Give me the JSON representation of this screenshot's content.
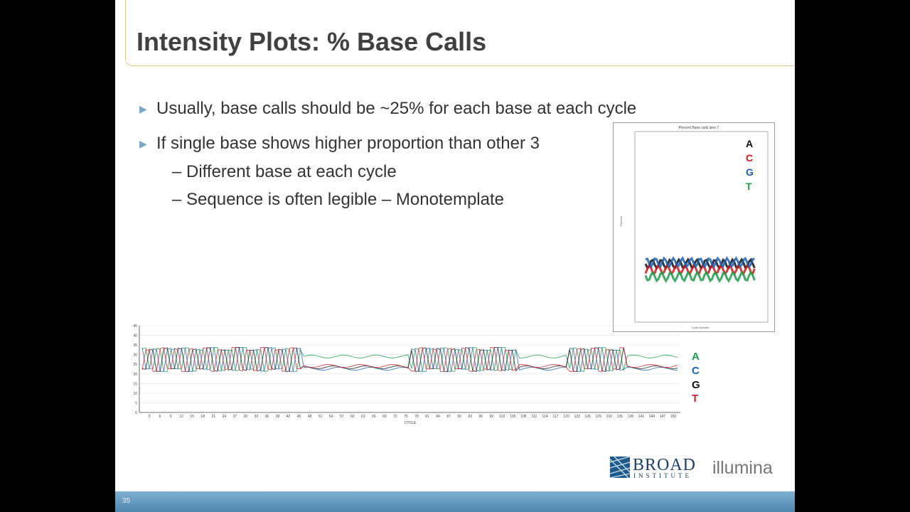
{
  "slide": {
    "title": "Intensity Plots: % Base Calls",
    "bullets": [
      "Usually, base calls should be ~25% for each base at each cycle",
      "If single base shows higher proportion than other 3"
    ],
    "sub_bullets": [
      "– Different base at each cycle",
      "– Sequence is often legible – Monotemplate"
    ],
    "page_number": "35",
    "arrow_glyph": "▶"
  },
  "inset_chart": {
    "title": "Percent Base calls lane 7",
    "xlabel": "Cycle Number",
    "ylabel": "Percent",
    "legend": [
      "A",
      "C",
      "G",
      "T"
    ],
    "legend_colors": [
      "#111111",
      "#d01818",
      "#1c5fb0",
      "#1e9a4a"
    ]
  },
  "chart_data": {
    "type": "line",
    "xlabel": "CYCLE",
    "ylim": [
      0,
      45
    ],
    "yticks": [
      "0",
      "5",
      "10",
      "15",
      "20",
      "25",
      "30",
      "35",
      "40",
      "45"
    ],
    "xticks": [
      "3",
      "6",
      "9",
      "12",
      "15",
      "18",
      "21",
      "24",
      "27",
      "30",
      "33",
      "36",
      "39",
      "42",
      "45",
      "48",
      "51",
      "54",
      "57",
      "60",
      "63",
      "66",
      "69",
      "72",
      "75",
      "78",
      "81",
      "84",
      "87",
      "90",
      "93",
      "96",
      "99",
      "102",
      "105",
      "108",
      "111",
      "114",
      "117",
      "120",
      "123",
      "126",
      "129",
      "132",
      "135",
      "138",
      "141",
      "144",
      "147",
      "150"
    ],
    "legend": [
      {
        "label": "A",
        "color": "#1e9a4a"
      },
      {
        "label": "C",
        "color": "#1c5fb0"
      },
      {
        "label": "G",
        "color": "#111111"
      },
      {
        "label": "T",
        "color": "#c8202e"
      }
    ]
  },
  "logos": {
    "broad_main": "BROAD",
    "broad_sub": "INSTITUTE",
    "illumina": "illumina"
  }
}
